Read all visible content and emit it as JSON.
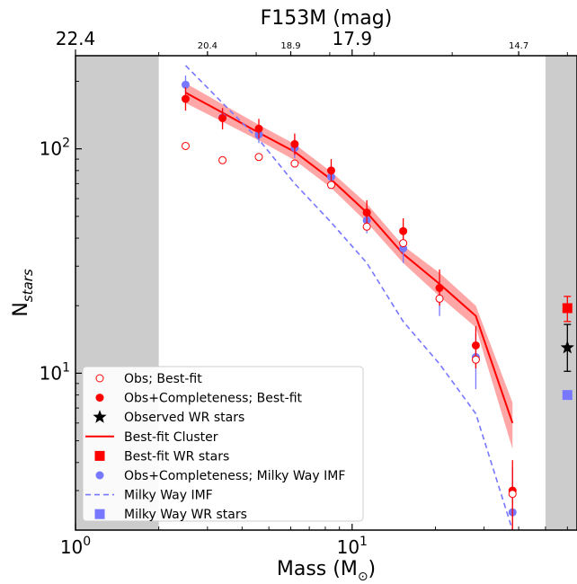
{
  "chart_data": {
    "type": "scatter",
    "title": "",
    "xlabel": "Mass (M",
    "xlabel_sub": "⊙",
    "xlabel_end": ")",
    "ylabel": "N",
    "ylabel_sub": "stars",
    "top_axis_label": "F153M (mag)",
    "xscale": "log",
    "yscale": "log",
    "xlim": [
      1,
      65
    ],
    "ylim": [
      2,
      260
    ],
    "x_ticks": [
      {
        "value": 1,
        "label": "10",
        "exp": "0"
      },
      {
        "value": 10,
        "label": "10",
        "exp": "1"
      }
    ],
    "y_ticks": [
      {
        "value": 10,
        "label": "10",
        "exp": "1"
      },
      {
        "value": 100,
        "label": "10",
        "exp": "2"
      }
    ],
    "top_ticks": [
      {
        "x": 1.0,
        "label": "22.4",
        "major": true
      },
      {
        "x": 3.0,
        "label": "20.4",
        "major": false
      },
      {
        "x": 6.0,
        "label": "18.9",
        "major": false
      },
      {
        "x": 10.0,
        "label": "17.9",
        "major": true
      },
      {
        "x": 40.0,
        "label": "14.7",
        "major": false
      }
    ],
    "top_minor_ticks": [
      2.0,
      4.5,
      8.3,
      12.0,
      23.0,
      60.0
    ],
    "shaded_regions": [
      {
        "x0": 1,
        "x1": 2,
        "color": "#cccccc"
      },
      {
        "x0": 50,
        "x1": 65,
        "color": "#cccccc"
      }
    ],
    "series": [
      {
        "name": "Obs; Best-fit",
        "kind": "open-circle",
        "color": "#ff0000",
        "x": [
          2.5,
          3.4,
          4.6,
          6.2,
          8.4,
          11.3,
          15.3,
          20.7,
          28.0,
          38.0
        ],
        "y": [
          103,
          89,
          92,
          86,
          69,
          45,
          38,
          21.5,
          11.5,
          2.9
        ]
      },
      {
        "name": "Obs+Completeness; Best-fit",
        "kind": "filled-circle",
        "color": "#ff0000",
        "x": [
          2.5,
          3.4,
          4.6,
          6.2,
          8.4,
          11.3,
          15.3,
          20.7,
          28.0,
          38.0
        ],
        "y": [
          167,
          137,
          123,
          105,
          80,
          52,
          43,
          24,
          13.3,
          3.0
        ],
        "yerr_low": [
          148,
          122,
          111,
          94,
          71,
          45,
          37,
          20,
          10.5,
          2.0
        ],
        "yerr_high": [
          188,
          152,
          136,
          117,
          90,
          59,
          49,
          29,
          16.2,
          4.1
        ]
      },
      {
        "name": "Observed WR stars",
        "kind": "star",
        "color": "#000000",
        "x": [
          60
        ],
        "y": [
          13
        ],
        "yerr_low": [
          10.2
        ],
        "yerr_high": [
          16.5
        ]
      },
      {
        "name": "Best-fit Cluster",
        "kind": "line",
        "color": "#ff0000",
        "x": [
          2.5,
          3.4,
          4.6,
          6.2,
          8.4,
          11.3,
          15.3,
          20.7,
          28.0,
          38.0
        ],
        "y": [
          178,
          145,
          118,
          97,
          73,
          52,
          34,
          25,
          18,
          6.0
        ],
        "band_low": [
          160,
          132,
          109,
          89,
          67,
          47,
          31,
          22,
          16,
          4.6
        ],
        "band_high": [
          196,
          158,
          128,
          105,
          79,
          57,
          37,
          28,
          20,
          7.4
        ]
      },
      {
        "name": "Best-fit WR stars",
        "kind": "square",
        "color": "#ff0000",
        "x": [
          60
        ],
        "y": [
          19.5
        ],
        "yerr_low": [
          17.0
        ],
        "yerr_high": [
          22.0
        ]
      },
      {
        "name": "Obs+Completeness; Milky Way IMF",
        "kind": "filled-circle",
        "color": "#7777ff",
        "x": [
          2.5,
          3.4,
          4.6,
          6.2,
          8.4,
          11.3,
          15.3,
          20.7,
          28.0,
          38.0
        ],
        "y": [
          193,
          138,
          116,
          101,
          75,
          48,
          36,
          21.5,
          11.8,
          2.4
        ],
        "yerr_low": [
          176,
          126,
          106,
          91,
          67,
          42,
          31,
          18,
          8.5,
          1.7
        ],
        "yerr_high": [
          212,
          151,
          127,
          112,
          84,
          55,
          42,
          26,
          15.0,
          3.8
        ]
      },
      {
        "name": "Milky Way IMF",
        "kind": "dashed-line",
        "color": "#7777ff",
        "x": [
          2.5,
          3.4,
          4.6,
          6.2,
          8.4,
          11.3,
          15.3,
          20.7,
          28.0,
          38.0
        ],
        "y": [
          235,
          160,
          110,
          70,
          47,
          31,
          17,
          11,
          6.6,
          2.0
        ]
      },
      {
        "name": "Milky Way WR stars",
        "kind": "square",
        "color": "#7777ff",
        "x": [
          60
        ],
        "y": [
          8.0
        ]
      }
    ],
    "legend_position": "lower-left"
  }
}
